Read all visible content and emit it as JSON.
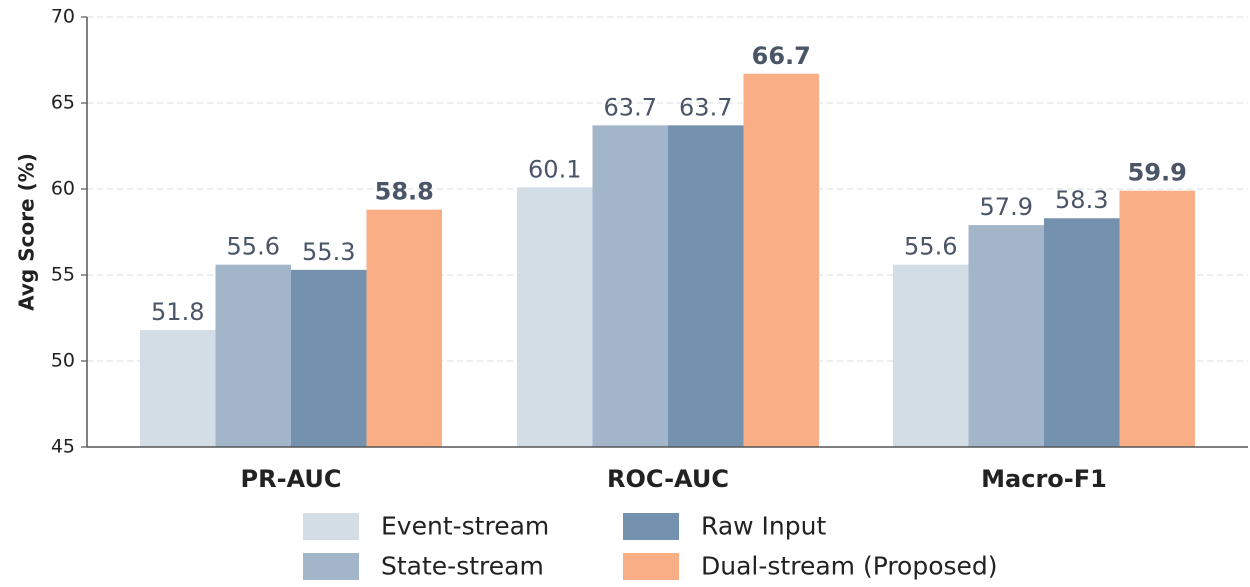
{
  "chart_data": {
    "type": "bar",
    "title": "",
    "xlabel": "",
    "ylabel": "Avg Score (%)",
    "ylim": [
      45,
      70
    ],
    "yticks": [
      45,
      50,
      55,
      60,
      65,
      70
    ],
    "grid": true,
    "legend_position": "bottom",
    "categories": [
      "PR-AUC",
      "ROC-AUC",
      "Macro-F1"
    ],
    "series": [
      {
        "name": "Event-stream",
        "color": "#d3dde6",
        "values": [
          51.8,
          60.1,
          55.6
        ],
        "highlight": false
      },
      {
        "name": "State-stream",
        "color": "#a3b6c9",
        "values": [
          55.6,
          63.7,
          57.9
        ],
        "highlight": false
      },
      {
        "name": "Raw Input",
        "color": "#7491ad",
        "values": [
          55.3,
          63.7,
          58.3
        ],
        "highlight": false
      },
      {
        "name": "Dual-stream (Proposed)",
        "color": "#f9ae85",
        "values": [
          58.8,
          66.7,
          59.9
        ],
        "highlight": true
      }
    ],
    "label_color": "#4a5568",
    "highlight_label_color": "#f58a3d"
  }
}
